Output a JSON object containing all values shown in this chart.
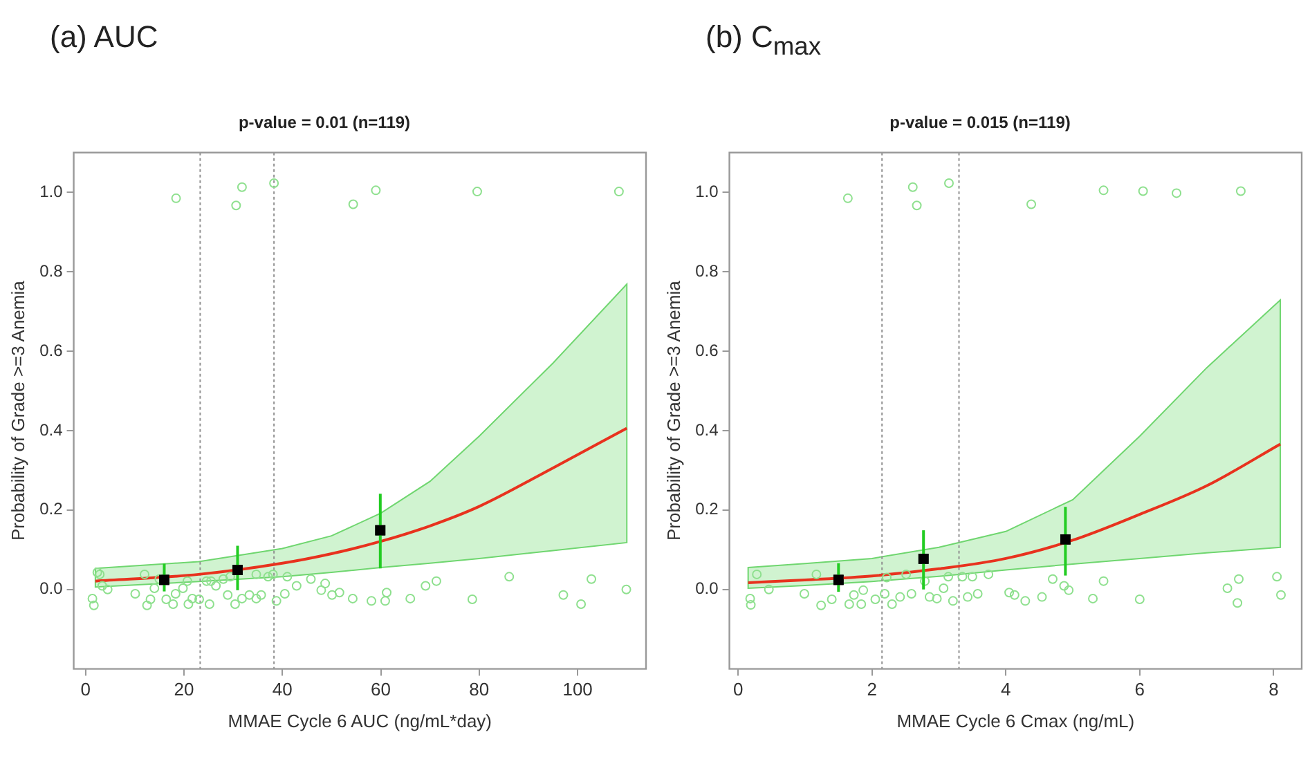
{
  "chart_data": [
    {
      "type": "scatter",
      "title": "(a) AUC",
      "subtitle": "p-value = 0.01 (n=119)",
      "xlabel": "MMAE Cycle 6 AUC (ng/mL*day)",
      "ylabel": "Probability of Grade >=3 Anemia",
      "xlim": [
        -2.4,
        113.9
      ],
      "ylim": [
        -0.2,
        1.1
      ],
      "xticks": [
        0,
        20,
        40,
        60,
        80,
        100
      ],
      "yticks": [
        {
          "value": 0,
          "label": "0.0"
        },
        {
          "value": 0.2,
          "label": "0.2"
        },
        {
          "value": 0.4,
          "label": "0.4"
        },
        {
          "value": 0.6,
          "label": "0.6"
        },
        {
          "value": 0.8,
          "label": "0.8"
        },
        {
          "value": 1,
          "label": "1.0"
        }
      ],
      "grid": false,
      "legend": false,
      "ref_lines": [
        {
          "axis": "x",
          "value": 23.3,
          "color": "#909090",
          "line_style": "dotted"
        },
        {
          "axis": "x",
          "value": 38.3,
          "color": "#909090",
          "line_style": "dotted"
        }
      ],
      "series": [
        {
          "type": "scatter",
          "marker": "circle",
          "color": "#8ee08e",
          "x": [
            18.4,
            30.6,
            31.8,
            38.3,
            54.4,
            59,
            79.6,
            108.4,
            1.4,
            1.7,
            2.4,
            3.4,
            4.5,
            10.1,
            12.5,
            13.2,
            14,
            16.4,
            17.8,
            18.3,
            19.8,
            20.9,
            21.7,
            23.1,
            24.6,
            25.2,
            26.5,
            28,
            28.9,
            30.4,
            31.8,
            33.3,
            34.7,
            35.7,
            37.1,
            38.8,
            40.5,
            41,
            42.9,
            45.8,
            47.9,
            48.7,
            50.1,
            51.6,
            54.3,
            58.1,
            60.9,
            61.2,
            66,
            69.1,
            71.3,
            78.6,
            86.1,
            97.1,
            100.7,
            102.8,
            109.9,
            2.9,
            12,
            15,
            20.7,
            25.5,
            29.4,
            34.7,
            38.1
          ],
          "values": [
            0.985,
            0.967,
            1.013,
            1.023,
            0.97,
            1.005,
            1.002,
            1.002,
            -0.023,
            -0.04,
            0.043,
            0.009,
            0,
            -0.011,
            -0.04,
            -0.025,
            0.003,
            -0.025,
            -0.037,
            -0.011,
            0.003,
            -0.037,
            -0.023,
            -0.025,
            0.021,
            -0.037,
            0.009,
            0.026,
            -0.014,
            -0.037,
            -0.023,
            -0.014,
            -0.023,
            -0.014,
            0.032,
            -0.029,
            -0.011,
            0.032,
            0.009,
            0.026,
            -0.002,
            0.015,
            -0.014,
            -0.008,
            -0.023,
            -0.029,
            -0.029,
            -0.008,
            -0.023,
            0.009,
            0.021,
            -0.025,
            0.032,
            -0.014,
            -0.037,
            0.026,
            0,
            0.038,
            0.038,
            0.026,
            0.021,
            0.021,
            0.032,
            0.038,
            0.038
          ]
        },
        {
          "type": "line",
          "marker": "none",
          "color": "#e8321e",
          "x": [
            2,
            23,
            40,
            50,
            60,
            70,
            80,
            95,
            110
          ],
          "values": [
            0.021,
            0.038,
            0.066,
            0.09,
            0.121,
            0.16,
            0.209,
            0.306,
            0.406
          ],
          "lower": [
            0.006,
            0.02,
            0.032,
            0.043,
            0.055,
            0.066,
            0.078,
            0.098,
            0.118
          ],
          "upper": [
            0.053,
            0.07,
            0.103,
            0.135,
            0.192,
            0.272,
            0.386,
            0.57,
            0.769
          ]
        },
        {
          "type": "scatter",
          "marker": "square",
          "color": "#000000",
          "x": [
            16,
            30.9,
            59.9
          ],
          "values": [
            0.024,
            0.049,
            0.149
          ],
          "errors": [
            [
              -0.005,
              0.065
            ],
            [
              -0.002,
              0.11
            ],
            [
              0.053,
              0.241
            ]
          ]
        }
      ]
    },
    {
      "type": "scatter",
      "title": "(b) C$_{max}$",
      "subtitle": "p-value = 0.015 (n=119)",
      "xlabel": "MMAE Cycle 6 Cmax (ng/mL)",
      "ylabel": "Probability of Grade >=3 Anemia",
      "xlim": [
        -0.13,
        8.42
      ],
      "ylim": [
        -0.2,
        1.1
      ],
      "xticks": [
        0,
        2,
        4,
        6,
        8
      ],
      "yticks": [
        {
          "value": 0,
          "label": "0.0"
        },
        {
          "value": 0.2,
          "label": "0.2"
        },
        {
          "value": 0.4,
          "label": "0.4"
        },
        {
          "value": 0.6,
          "label": "0.6"
        },
        {
          "value": 0.8,
          "label": "0.8"
        },
        {
          "value": 1,
          "label": "1.0"
        }
      ],
      "grid": false,
      "legend": false,
      "ref_lines": [
        {
          "axis": "x",
          "value": 2.15,
          "color": "#909090",
          "line_style": "dotted"
        },
        {
          "axis": "x",
          "value": 3.3,
          "color": "#909090",
          "line_style": "dotted"
        }
      ],
      "series": [
        {
          "type": "scatter",
          "marker": "circle",
          "color": "#8ee08e",
          "x": [
            1.64,
            2.61,
            2.67,
            3.15,
            4.38,
            5.46,
            6.05,
            6.55,
            7.51,
            0.18,
            0.19,
            0.28,
            0.46,
            0.99,
            1.17,
            1.24,
            1.4,
            1.66,
            1.73,
            1.84,
            1.87,
            2.05,
            2.19,
            2.3,
            2.42,
            2.51,
            2.59,
            2.86,
            2.97,
            3.07,
            3.21,
            3.43,
            3.5,
            3.58,
            3.74,
            4.05,
            4.13,
            4.29,
            4.54,
            4.7,
            4.87,
            4.94,
            5.3,
            5.46,
            6,
            7.31,
            7.48,
            7.46,
            8.05,
            8.11,
            2.79,
            3.14,
            2.22,
            3.35
          ],
          "values": [
            0.985,
            1.013,
            0.967,
            1.023,
            0.97,
            1.005,
            1.003,
            0.998,
            1.003,
            -0.023,
            -0.039,
            0.038,
            0,
            -0.011,
            0.038,
            -0.04,
            -0.025,
            -0.037,
            -0.014,
            -0.037,
            -0.002,
            -0.025,
            -0.011,
            -0.037,
            -0.019,
            0.038,
            -0.011,
            -0.019,
            -0.023,
            0.003,
            -0.029,
            -0.019,
            0.032,
            -0.011,
            0.038,
            -0.008,
            -0.014,
            -0.029,
            -0.019,
            0.026,
            0.009,
            -0.002,
            -0.023,
            0.021,
            -0.025,
            0.003,
            0.026,
            -0.034,
            0.032,
            -0.014,
            0.021,
            0.032,
            0.03,
            0.032
          ]
        },
        {
          "type": "line",
          "marker": "none",
          "color": "#e8321e",
          "x": [
            0.15,
            1,
            2,
            3,
            4,
            5,
            6,
            7,
            8.1
          ],
          "values": [
            0.017,
            0.024,
            0.034,
            0.052,
            0.078,
            0.124,
            0.189,
            0.261,
            0.366
          ],
          "lower": [
            0.003,
            0.01,
            0.02,
            0.033,
            0.049,
            0.064,
            0.078,
            0.092,
            0.106
          ],
          "upper": [
            0.055,
            0.065,
            0.078,
            0.106,
            0.146,
            0.226,
            0.386,
            0.558,
            0.729
          ]
        },
        {
          "type": "scatter",
          "marker": "square",
          "color": "#000000",
          "x": [
            1.5,
            2.77,
            4.89
          ],
          "values": [
            0.024,
            0.077,
            0.126
          ],
          "errors": [
            [
              -0.006,
              0.066
            ],
            [
              0,
              0.149
            ],
            [
              0.035,
              0.208
            ]
          ]
        }
      ]
    }
  ]
}
